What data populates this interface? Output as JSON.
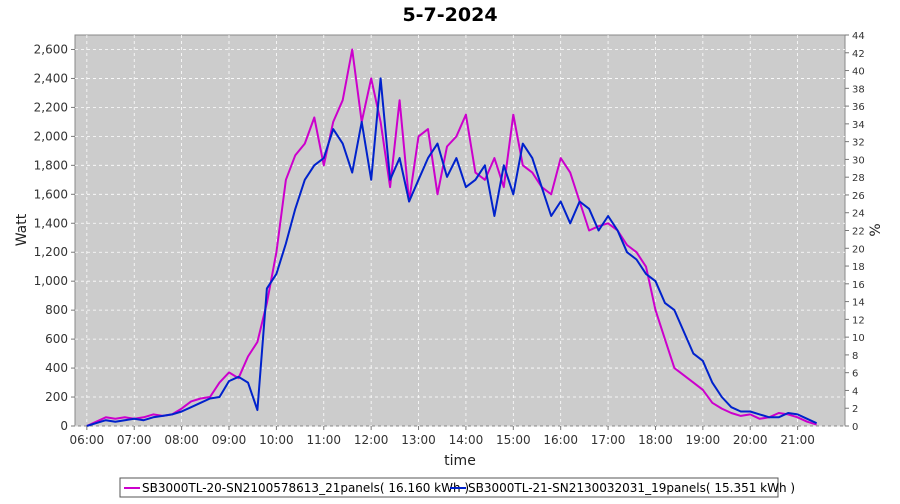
{
  "chart_data": {
    "type": "line",
    "title": "5-7-2024",
    "xlabel": "time",
    "ylabel": "Watt",
    "y2label": "%",
    "xlim": [
      5.75,
      22.0
    ],
    "ylim": [
      0,
      2700
    ],
    "y2lim": [
      0,
      44
    ],
    "x_ticks": [
      "06:00",
      "07:00",
      "08:00",
      "09:00",
      "10:00",
      "11:00",
      "12:00",
      "13:00",
      "14:00",
      "15:00",
      "16:00",
      "17:00",
      "18:00",
      "19:00",
      "20:00",
      "21:00"
    ],
    "y_ticks": [
      "0",
      "200",
      "400",
      "600",
      "800",
      "1,000",
      "1,200",
      "1,400",
      "1,600",
      "1,800",
      "2,000",
      "2,200",
      "2,400",
      "2,600"
    ],
    "y2_ticks": [
      "0",
      "2",
      "4",
      "6",
      "8",
      "10",
      "12",
      "14",
      "16",
      "18",
      "20",
      "22",
      "24",
      "26",
      "28",
      "30",
      "32",
      "34",
      "36",
      "38",
      "40",
      "42",
      "44"
    ],
    "grid": true,
    "legend_position": "bottom",
    "series": [
      {
        "name": "SB3000TL-20-SN2100578613_21panels( 16.160 kWh )",
        "color": "#cc00cc",
        "x": [
          6.0,
          6.2,
          6.4,
          6.6,
          6.8,
          7.0,
          7.2,
          7.4,
          7.6,
          7.8,
          8.0,
          8.2,
          8.4,
          8.6,
          8.8,
          9.0,
          9.2,
          9.4,
          9.6,
          9.8,
          10.0,
          10.2,
          10.4,
          10.6,
          10.8,
          11.0,
          11.2,
          11.4,
          11.6,
          11.8,
          12.0,
          12.2,
          12.4,
          12.6,
          12.8,
          13.0,
          13.2,
          13.4,
          13.6,
          13.8,
          14.0,
          14.2,
          14.4,
          14.6,
          14.8,
          15.0,
          15.2,
          15.4,
          15.6,
          15.8,
          16.0,
          16.2,
          16.4,
          16.6,
          16.8,
          17.0,
          17.2,
          17.4,
          17.6,
          17.8,
          18.0,
          18.2,
          18.4,
          18.6,
          18.8,
          19.0,
          19.2,
          19.4,
          19.6,
          19.8,
          20.0,
          20.2,
          20.4,
          20.6,
          20.8,
          21.0,
          21.2,
          21.4
        ],
        "y": [
          0,
          30,
          60,
          50,
          60,
          50,
          60,
          80,
          70,
          80,
          120,
          170,
          190,
          200,
          300,
          370,
          330,
          480,
          580,
          850,
          1200,
          1700,
          1870,
          1950,
          2130,
          1800,
          2100,
          2250,
          2600,
          2100,
          2400,
          2100,
          1650,
          2250,
          1550,
          2000,
          2050,
          1600,
          1930,
          2000,
          2150,
          1750,
          1700,
          1850,
          1650,
          2150,
          1800,
          1750,
          1650,
          1600,
          1850,
          1750,
          1550,
          1350,
          1380,
          1400,
          1350,
          1250,
          1200,
          1100,
          800,
          600,
          400,
          350,
          300,
          250,
          160,
          120,
          90,
          70,
          80,
          50,
          60,
          90,
          80,
          60,
          30,
          10
        ]
      },
      {
        "name": "SB3000TL-21-SN2130032031_19panels( 15.351 kWh )",
        "color": "#0022cc",
        "x": [
          6.0,
          6.2,
          6.4,
          6.6,
          6.8,
          7.0,
          7.2,
          7.4,
          7.6,
          7.8,
          8.0,
          8.2,
          8.4,
          8.6,
          8.8,
          9.0,
          9.2,
          9.4,
          9.6,
          9.8,
          10.0,
          10.2,
          10.4,
          10.6,
          10.8,
          11.0,
          11.2,
          11.4,
          11.6,
          11.8,
          12.0,
          12.2,
          12.4,
          12.6,
          12.8,
          13.0,
          13.2,
          13.4,
          13.6,
          13.8,
          14.0,
          14.2,
          14.4,
          14.6,
          14.8,
          15.0,
          15.2,
          15.4,
          15.6,
          15.8,
          16.0,
          16.2,
          16.4,
          16.6,
          16.8,
          17.0,
          17.2,
          17.4,
          17.6,
          17.8,
          18.0,
          18.2,
          18.4,
          18.6,
          18.8,
          19.0,
          19.2,
          19.4,
          19.6,
          19.8,
          20.0,
          20.2,
          20.4,
          20.6,
          20.8,
          21.0,
          21.2,
          21.4
        ],
        "y": [
          0,
          20,
          40,
          30,
          40,
          50,
          40,
          60,
          70,
          80,
          100,
          130,
          160,
          190,
          200,
          310,
          340,
          300,
          110,
          950,
          1050,
          1260,
          1500,
          1700,
          1800,
          1850,
          2050,
          1950,
          1750,
          2100,
          1700,
          2400,
          1700,
          1850,
          1550,
          1700,
          1850,
          1950,
          1720,
          1850,
          1650,
          1700,
          1800,
          1450,
          1800,
          1600,
          1950,
          1850,
          1650,
          1450,
          1550,
          1400,
          1550,
          1500,
          1350,
          1450,
          1350,
          1200,
          1150,
          1050,
          1000,
          850,
          800,
          650,
          500,
          450,
          300,
          200,
          130,
          100,
          100,
          80,
          60,
          60,
          90,
          80,
          50,
          20
        ]
      }
    ]
  }
}
